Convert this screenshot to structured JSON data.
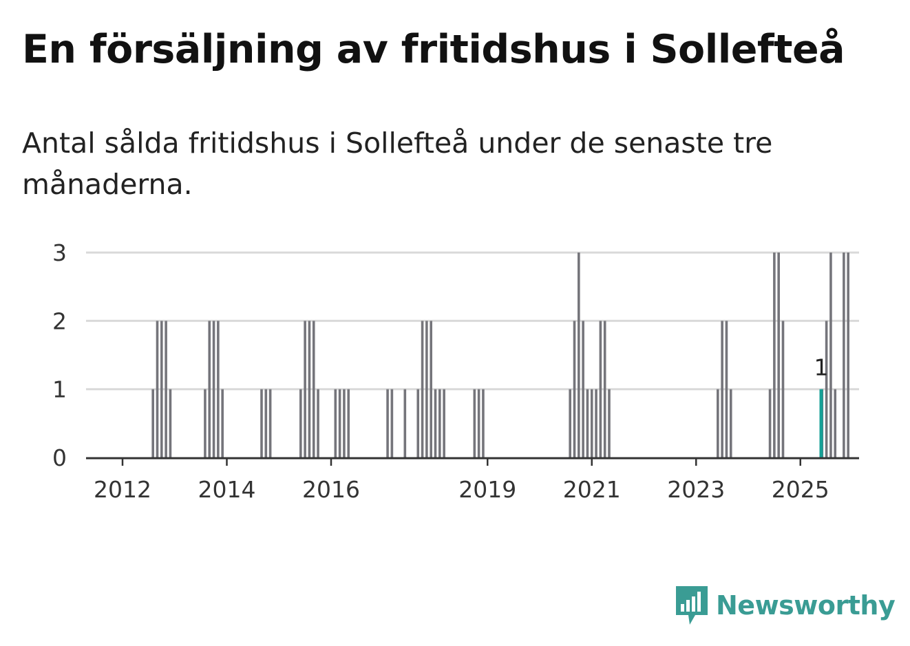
{
  "title": "En försäljning av fritidshus i Sollefteå",
  "subtitle": "Antal sålda fritidshus i Sollefteå under de senaste tre månaderna.",
  "brand": {
    "name": "Newsworthy",
    "color": "#3a9c94",
    "icon": "newsworthy-logo-icon"
  },
  "colors": {
    "bar": "#75757b",
    "highlight": "#16a096",
    "grid": "#d9d9d9",
    "axis": "#333333"
  },
  "chart_data": {
    "type": "bar",
    "title": "En försäljning av fritidshus i Sollefteå",
    "subtitle": "Antal sålda fritidshus i Sollefteå under de senaste tre månaderna.",
    "xlabel": "",
    "ylabel": "",
    "x_unit": "rolling 3-month period ending in month",
    "ylim": [
      0,
      3
    ],
    "y_ticks": [
      0,
      1,
      2,
      3
    ],
    "x_ticks": [
      "2012",
      "2014",
      "2016",
      "2019",
      "2021",
      "2023",
      "2025"
    ],
    "x_range": [
      "2011-04",
      "2025-12"
    ],
    "grid": "horizontal",
    "highlight": {
      "x": "2025-06",
      "value": 1,
      "label": "1"
    },
    "series": [
      {
        "values": [
          {
            "x": "2012-08",
            "y": 1
          },
          {
            "x": "2012-09",
            "y": 2
          },
          {
            "x": "2012-10",
            "y": 2
          },
          {
            "x": "2012-11",
            "y": 2
          },
          {
            "x": "2012-12",
            "y": 1
          },
          {
            "x": "2013-08",
            "y": 1
          },
          {
            "x": "2013-09",
            "y": 2
          },
          {
            "x": "2013-10",
            "y": 2
          },
          {
            "x": "2013-11",
            "y": 2
          },
          {
            "x": "2013-12",
            "y": 1
          },
          {
            "x": "2014-09",
            "y": 1
          },
          {
            "x": "2014-10",
            "y": 1
          },
          {
            "x": "2014-11",
            "y": 1
          },
          {
            "x": "2015-06",
            "y": 1
          },
          {
            "x": "2015-07",
            "y": 2
          },
          {
            "x": "2015-08",
            "y": 2
          },
          {
            "x": "2015-09",
            "y": 2
          },
          {
            "x": "2015-10",
            "y": 1
          },
          {
            "x": "2016-02",
            "y": 1
          },
          {
            "x": "2016-03",
            "y": 1
          },
          {
            "x": "2016-04",
            "y": 1
          },
          {
            "x": "2016-05",
            "y": 1
          },
          {
            "x": "2017-02",
            "y": 1
          },
          {
            "x": "2017-03",
            "y": 1
          },
          {
            "x": "2017-06",
            "y": 1
          },
          {
            "x": "2017-09",
            "y": 1
          },
          {
            "x": "2017-10",
            "y": 2
          },
          {
            "x": "2017-11",
            "y": 2
          },
          {
            "x": "2017-12",
            "y": 2
          },
          {
            "x": "2018-01",
            "y": 1
          },
          {
            "x": "2018-02",
            "y": 1
          },
          {
            "x": "2018-03",
            "y": 1
          },
          {
            "x": "2018-10",
            "y": 1
          },
          {
            "x": "2018-11",
            "y": 1
          },
          {
            "x": "2018-12",
            "y": 1
          },
          {
            "x": "2020-08",
            "y": 1
          },
          {
            "x": "2020-09",
            "y": 2
          },
          {
            "x": "2020-10",
            "y": 3
          },
          {
            "x": "2020-11",
            "y": 2
          },
          {
            "x": "2020-12",
            "y": 1
          },
          {
            "x": "2021-01",
            "y": 1
          },
          {
            "x": "2021-02",
            "y": 1
          },
          {
            "x": "2021-03",
            "y": 2
          },
          {
            "x": "2021-04",
            "y": 2
          },
          {
            "x": "2021-05",
            "y": 1
          },
          {
            "x": "2023-06",
            "y": 1
          },
          {
            "x": "2023-07",
            "y": 2
          },
          {
            "x": "2023-08",
            "y": 2
          },
          {
            "x": "2023-09",
            "y": 1
          },
          {
            "x": "2024-06",
            "y": 1
          },
          {
            "x": "2024-07",
            "y": 3
          },
          {
            "x": "2024-08",
            "y": 3
          },
          {
            "x": "2024-09",
            "y": 2
          },
          {
            "x": "2025-06",
            "y": 1
          },
          {
            "x": "2025-07",
            "y": 2
          },
          {
            "x": "2025-08",
            "y": 3
          },
          {
            "x": "2025-09",
            "y": 1
          },
          {
            "x": "2025-11",
            "y": 3
          },
          {
            "x": "2025-12",
            "y": 3
          }
        ]
      }
    ]
  }
}
